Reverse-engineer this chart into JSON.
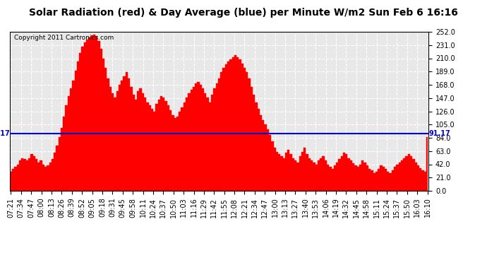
{
  "title": "Solar Radiation (red) & Day Average (blue) per Minute W/m2 Sun Feb 6 16:16",
  "copyright": "Copyright 2011 Cartronics.com",
  "ylim": [
    0.0,
    252.0
  ],
  "yticks": [
    0.0,
    21.0,
    42.0,
    63.0,
    84.0,
    105.0,
    126.0,
    147.0,
    168.0,
    189.0,
    210.0,
    231.0,
    252.0
  ],
  "avg_line_y": 91.17,
  "avg_label": "91.17",
  "area_color": "#FF0000",
  "line_color": "#0000CC",
  "background_color": "#FFFFFF",
  "plot_bg_color": "#E8E8E8",
  "grid_color": "#FFFFFF",
  "grid_style": "--",
  "xtick_labels": [
    "07:21",
    "07:34",
    "07:47",
    "08:00",
    "08:13",
    "08:26",
    "08:39",
    "08:52",
    "09:05",
    "09:18",
    "09:31",
    "09:45",
    "09:58",
    "10:11",
    "10:24",
    "10:37",
    "10:50",
    "11:03",
    "11:16",
    "11:29",
    "11:42",
    "11:55",
    "12:08",
    "12:21",
    "12:34",
    "12:47",
    "13:00",
    "13:13",
    "13:27",
    "13:40",
    "13:53",
    "14:06",
    "14:19",
    "14:32",
    "14:45",
    "14:58",
    "15:11",
    "15:24",
    "15:37",
    "15:50",
    "16:03",
    "16:10"
  ],
  "solar_data": [
    30,
    35,
    38,
    42,
    48,
    52,
    50,
    48,
    52,
    58,
    55,
    50,
    45,
    48,
    42,
    38,
    40,
    45,
    50,
    60,
    72,
    85,
    100,
    118,
    135,
    150,
    162,
    175,
    190,
    205,
    218,
    228,
    235,
    240,
    243,
    246,
    248,
    245,
    238,
    225,
    210,
    195,
    178,
    165,
    155,
    148,
    158,
    168,
    175,
    182,
    188,
    178,
    165,
    152,
    145,
    158,
    162,
    155,
    148,
    140,
    135,
    130,
    125,
    138,
    145,
    150,
    148,
    142,
    135,
    128,
    120,
    115,
    118,
    125,
    132,
    140,
    148,
    155,
    160,
    165,
    170,
    172,
    168,
    162,
    155,
    148,
    140,
    152,
    162,
    170,
    178,
    188,
    195,
    200,
    205,
    208,
    212,
    215,
    212,
    208,
    202,
    195,
    188,
    178,
    165,
    152,
    140,
    130,
    120,
    112,
    105,
    98,
    88,
    78,
    68,
    62,
    58,
    55,
    52,
    60,
    65,
    58,
    52,
    48,
    45,
    55,
    62,
    68,
    58,
    52,
    48,
    45,
    42,
    48,
    52,
    55,
    48,
    42,
    38,
    35,
    40,
    45,
    50,
    55,
    60,
    58,
    52,
    48,
    44,
    40,
    38,
    42,
    48,
    45,
    40,
    35,
    32,
    28,
    30,
    35,
    40,
    38,
    35,
    30,
    28,
    32,
    38,
    42,
    45,
    48,
    52,
    55,
    58,
    55,
    50,
    45,
    40,
    36,
    32,
    30,
    85
  ],
  "title_fontsize": 10,
  "tick_fontsize": 7,
  "copyright_fontsize": 6.5,
  "label_fontsize": 7
}
